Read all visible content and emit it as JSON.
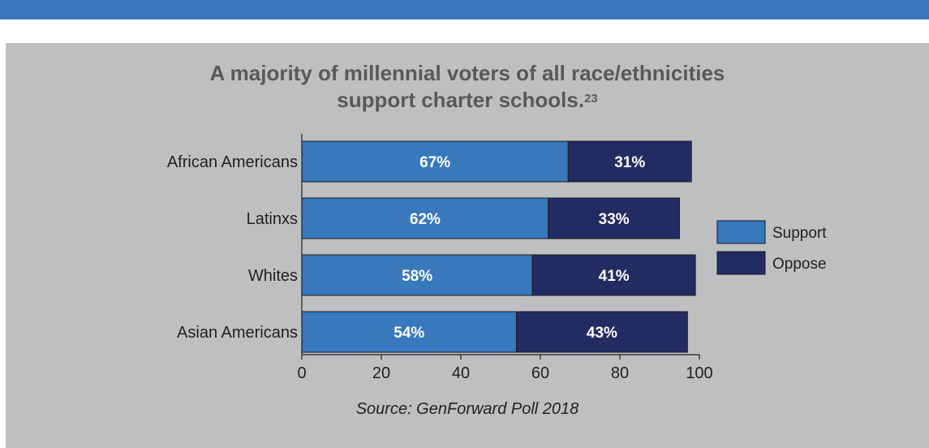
{
  "chart_data": {
    "type": "bar",
    "orientation": "horizontal",
    "stacked": true,
    "title": "A majority of millennial voters of all race/ethnicities support charter schools.",
    "title_superscript": "23",
    "source": "Source: GenForward Poll 2018",
    "categories": [
      "African Americans",
      "Latinxs",
      "Whites",
      "Asian Americans"
    ],
    "series": [
      {
        "name": "Support",
        "color": "#3878bd",
        "values": [
          67,
          62,
          58,
          54
        ],
        "labels": [
          "67%",
          "62%",
          "58%",
          "54%"
        ]
      },
      {
        "name": "Oppose",
        "color": "#232c62",
        "values": [
          31,
          33,
          41,
          43
        ],
        "labels": [
          "31%",
          "33%",
          "41%",
          "43%"
        ]
      }
    ],
    "xlim": [
      0,
      100
    ],
    "xticks": [
      0,
      20,
      40,
      60,
      80,
      100
    ],
    "grid": false,
    "legend_position": "right"
  }
}
